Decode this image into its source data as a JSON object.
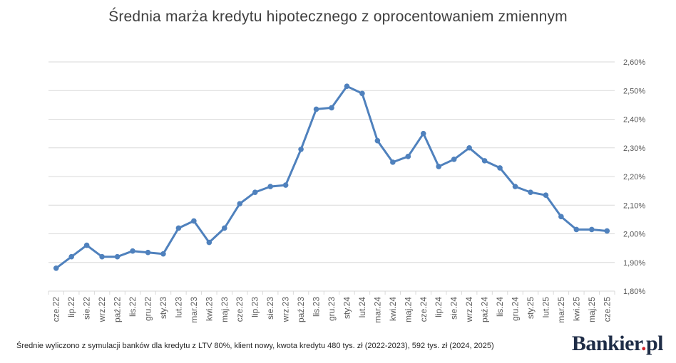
{
  "chart_data": {
    "type": "line",
    "title": "Średnia marża kredytu hipotecznego z oprocentowaniem zmiennym",
    "categories": [
      "cze.22",
      "lip.22",
      "sie.22",
      "wrz.22",
      "paź.22",
      "lis.22",
      "gru.22",
      "sty.23",
      "lut.23",
      "mar.23",
      "kwi.23",
      "maj.23",
      "cze.23",
      "lip.23",
      "sie.23",
      "wrz.23",
      "paź.23",
      "lis.23",
      "gru.23",
      "sty.24",
      "lut.24",
      "mar.24",
      "kwi.24",
      "maj.24",
      "cze.24",
      "lip.24",
      "sie.24",
      "wrz.24",
      "paź.24",
      "lis.24",
      "gru.24",
      "sty.25",
      "lut.25",
      "mar.25",
      "kwi.25",
      "maj.25",
      "cze.25"
    ],
    "values": [
      1.88,
      1.92,
      1.96,
      1.92,
      1.92,
      1.94,
      1.935,
      1.93,
      2.02,
      2.045,
      1.97,
      2.02,
      2.105,
      2.145,
      2.165,
      2.17,
      2.295,
      2.435,
      2.44,
      2.515,
      2.49,
      2.325,
      2.25,
      2.27,
      2.35,
      2.235,
      2.26,
      2.3,
      2.255,
      2.23,
      2.165,
      2.145,
      2.135,
      2.06,
      2.015,
      2.015,
      2.01
    ],
    "ylim": [
      1.8,
      2.6
    ],
    "yticks": [
      "1,80%",
      "1,90%",
      "2,00%",
      "2,10%",
      "2,20%",
      "2,30%",
      "2,40%",
      "2,50%",
      "2,60%"
    ],
    "yaxis_side": "right",
    "grid": true,
    "series_color": "#4f81bd"
  },
  "footnote": "Średnie wyliczono z symulacji banków dla kredytu z LTV 80%, klient nowy, kwota kredytu 480 tys. zł (2022-2023), 592 tys. zł (2024, 2025)",
  "brand": {
    "name": "Bankier",
    "dot": ".",
    "tld": "pl"
  }
}
